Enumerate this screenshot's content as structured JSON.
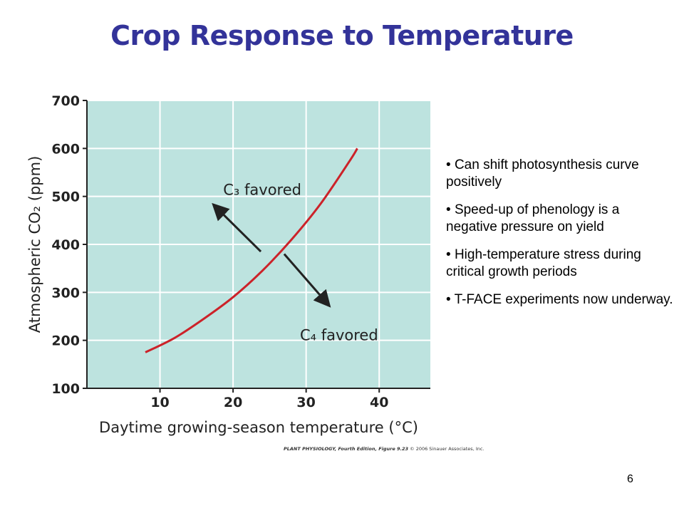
{
  "slide": {
    "title": "Crop Response to Temperature",
    "bullets": [
      "Can shift photosynthesis curve positively",
      "Speed-up of phenology is a negative pressure on yield",
      "High-temperature stress during critical growth periods",
      "T-FACE experiments now underway."
    ],
    "credit_bold": "PLANT PHYSIOLOGY, Fourth Edition, Figure 9.23",
    "credit_rest": " © 2006 Sinauer Associates, Inc.",
    "page_number": "6"
  },
  "colors": {
    "title": "#333399",
    "plot_background": "#bde3df",
    "curve": "#cc2229"
  },
  "chart_data": {
    "type": "line",
    "title": "",
    "xlabel": "Daytime growing-season temperature (°C)",
    "ylabel": "Atmospheric CO₂ (ppm)",
    "xlim": [
      0,
      47
    ],
    "ylim": [
      100,
      700
    ],
    "xticks": [
      10,
      20,
      30,
      40
    ],
    "yticks": [
      100,
      200,
      300,
      400,
      500,
      600,
      700
    ],
    "grid": true,
    "series": [
      {
        "x": [
          8,
          12,
          16,
          20,
          24,
          28,
          32,
          36,
          37
        ],
        "y": [
          175,
          205,
          245,
          290,
          345,
          410,
          485,
          575,
          600
        ]
      }
    ],
    "annotations": [
      {
        "text": "C₃ favored",
        "x": 24,
        "y": 515,
        "arrow_from": [
          23.8,
          385
        ],
        "arrow_to": [
          17.5,
          480
        ]
      },
      {
        "text": "C₄ favored",
        "x": 34.5,
        "y": 212,
        "arrow_from": [
          27,
          380
        ],
        "arrow_to": [
          33,
          275
        ]
      }
    ]
  }
}
